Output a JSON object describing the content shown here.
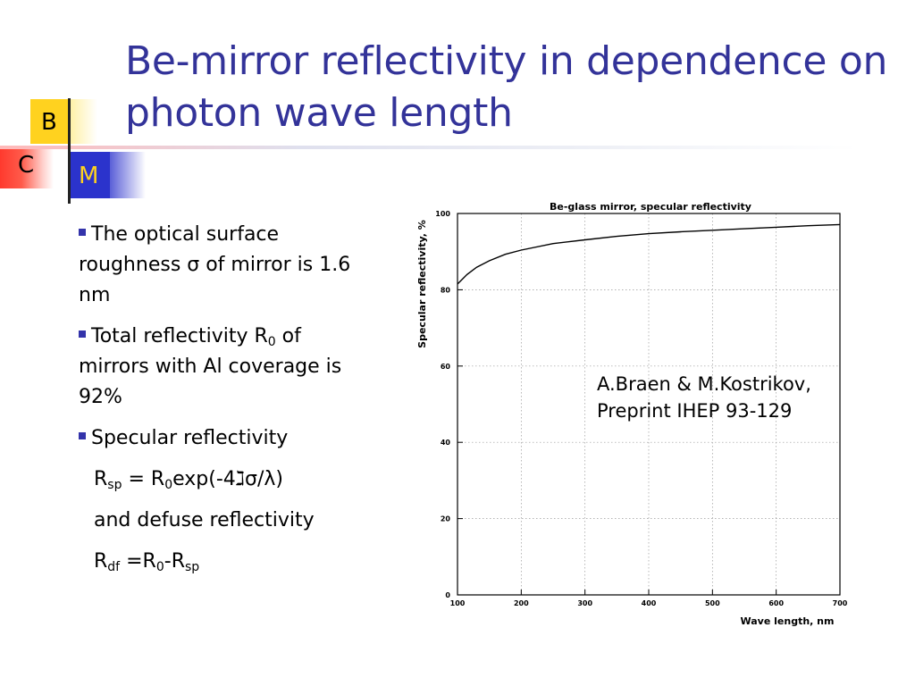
{
  "slide": {
    "title": "Be-mirror reflectivity in dependence on photon wave length",
    "logo": {
      "b": "B",
      "c": "C",
      "m": "M"
    }
  },
  "bullets": {
    "b1": "The optical surface roughness σ of mirror is 1.6 nm",
    "b2_pre": "Total reflectivity R",
    "b2_sub": "0",
    "b2_post": " of mirrors with Al coverage is 92%",
    "b3": "Specular reflectivity",
    "f1": {
      "r": "R",
      "sp": "sp",
      "eq": " = R",
      "z": "0",
      "rest": "exp(-4ℷσ/λ)"
    },
    "and": "and defuse reflectivity",
    "f2": {
      "r": "R",
      "df": "df",
      "eq": " =R",
      "z": "0",
      "dash": "-R",
      "sp": "sp"
    }
  },
  "citation": {
    "line1": "A.Braen & M.Kostrikov,",
    "line2": "Preprint IHEP 93-129"
  },
  "colors": {
    "title": "#333399",
    "bullet": "#3333aa",
    "logo_b": "#ffd21f",
    "logo_c": "#ff3a2e",
    "logo_m": "#2b33cc"
  },
  "chart_data": {
    "type": "line",
    "title": "Be-glass mirror, specular reflectivity",
    "xlabel": "Wave length,  nm",
    "ylabel": "Specular reflectivity, %",
    "xlim": [
      100,
      700
    ],
    "ylim": [
      0,
      100
    ],
    "xticks": [
      100,
      200,
      300,
      400,
      500,
      600,
      700
    ],
    "yticks": [
      0,
      20,
      40,
      60,
      80,
      100
    ],
    "grid": true,
    "series": [
      {
        "x": [
          100,
          115,
          130,
          150,
          175,
          200,
          250,
          300,
          350,
          400,
          450,
          500,
          550,
          600,
          650,
          700
        ],
        "y": [
          81.5,
          84.0,
          85.9,
          87.6,
          89.3,
          90.4,
          92.1,
          93.1,
          94.0,
          94.7,
          95.2,
          95.6,
          96.0,
          96.4,
          96.8,
          97.1
        ]
      }
    ]
  }
}
